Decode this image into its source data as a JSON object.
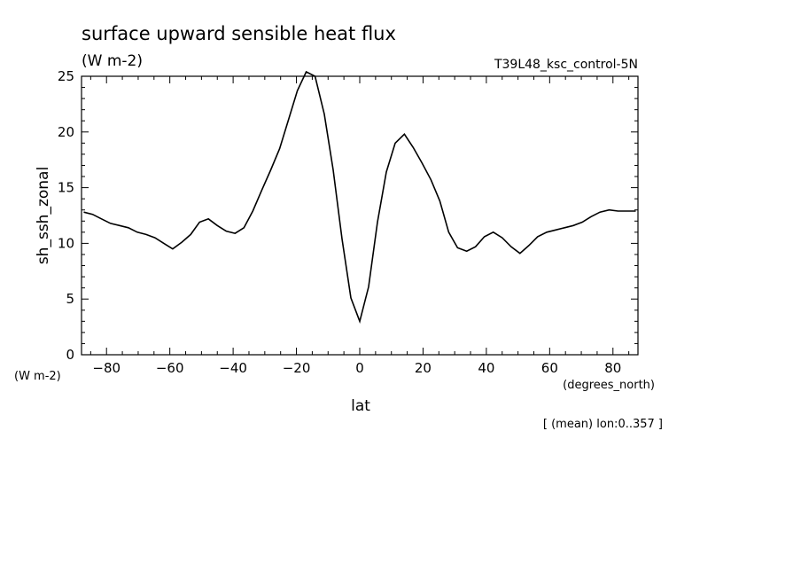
{
  "chart_data": {
    "type": "line",
    "title": "surface upward sensible heat flux",
    "subtitle": "(W m-2)",
    "run_label": "T39L48_ksc_control-5N",
    "ylabel": "sh_ssh_zonal",
    "y_units": "(W m-2)",
    "xlabel": "lat",
    "x_units": "(degrees_north)",
    "footnote": "[ (mean) lon:0..357 ]",
    "xlim": [
      -87.9,
      87.9
    ],
    "ylim": [
      0,
      25
    ],
    "x_ticks": [
      -80,
      -60,
      -40,
      -20,
      0,
      20,
      40,
      60,
      80
    ],
    "y_ticks": [
      0,
      5,
      10,
      15,
      20,
      25
    ],
    "grid": false,
    "series": [
      {
        "x": [
          -87.2,
          -84.4,
          -81.6,
          -78.8,
          -75.9,
          -73.1,
          -70.3,
          -67.5,
          -64.7,
          -61.9,
          -59.1,
          -56.2,
          -53.4,
          -50.6,
          -47.8,
          -45.0,
          -42.2,
          -39.4,
          -36.6,
          -33.8,
          -30.9,
          -28.1,
          -25.3,
          -22.5,
          -19.7,
          -16.9,
          -14.1,
          -11.2,
          -8.4,
          -5.6,
          -2.8,
          0.0,
          2.8,
          5.6,
          8.4,
          11.2,
          14.1,
          16.9,
          19.7,
          22.5,
          25.3,
          28.1,
          30.9,
          33.8,
          36.6,
          39.4,
          42.2,
          45.0,
          47.8,
          50.6,
          53.4,
          56.2,
          59.1,
          61.9,
          64.7,
          67.5,
          70.3,
          73.1,
          75.9,
          78.8,
          81.6,
          84.4,
          87.2
        ],
        "y": [
          12.8,
          12.6,
          12.2,
          11.8,
          11.6,
          11.4,
          11.0,
          10.8,
          10.5,
          10.0,
          9.5,
          10.1,
          10.8,
          11.9,
          12.2,
          11.6,
          11.1,
          10.9,
          11.4,
          12.9,
          14.8,
          16.6,
          18.5,
          21.1,
          23.7,
          25.4,
          25.0,
          21.6,
          16.6,
          10.4,
          5.1,
          3.0,
          6.1,
          11.9,
          16.4,
          19.0,
          19.8,
          18.6,
          17.2,
          15.7,
          13.8,
          11.0,
          9.6,
          9.3,
          9.7,
          10.6,
          11.0,
          10.5,
          9.7,
          9.1,
          9.8,
          10.6,
          11.0,
          11.2,
          11.4,
          11.6,
          11.9,
          12.4,
          12.8,
          13.0,
          12.9,
          12.9,
          12.9
        ]
      }
    ]
  }
}
